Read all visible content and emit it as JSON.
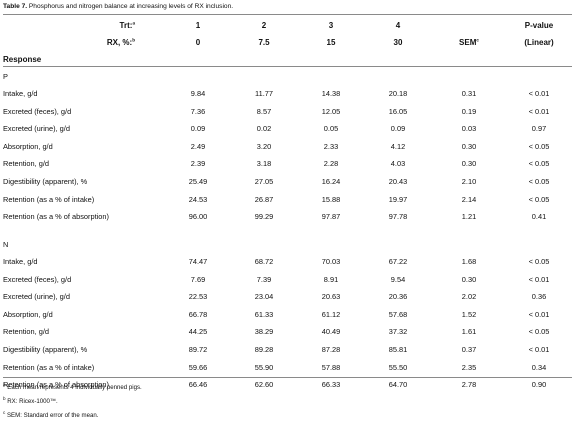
{
  "caption": {
    "label": "Table 7.",
    "text": " Phosphorus and nitrogen balance at increasing levels of RX inclusion."
  },
  "header": {
    "trt_label": "Trt:",
    "trt_mark": "a",
    "rx_label": "RX, %:",
    "rx_mark": "b",
    "trt_values": [
      "1",
      "2",
      "3",
      "4"
    ],
    "rx_values": [
      "0",
      "7.5",
      "15",
      "30"
    ],
    "sem_label": "SEM",
    "sem_mark": "c",
    "pvalue_label": "P-value",
    "pvalue_sub": "(Linear)",
    "response_label": "Response"
  },
  "sections": [
    {
      "name": "P",
      "rows": [
        {
          "label": "Intake, g/d",
          "values": [
            "9.84",
            "11.77",
            "14.38",
            "20.18"
          ],
          "sem": "0.31",
          "p": "< 0.01"
        },
        {
          "label": "Excreted (feces), g/d",
          "values": [
            "7.36",
            "8.57",
            "12.05",
            "16.05"
          ],
          "sem": "0.19",
          "p": "< 0.01"
        },
        {
          "label": "Excreted (urine), g/d",
          "values": [
            "0.09",
            "0.02",
            "0.05",
            "0.09"
          ],
          "sem": "0.03",
          "p": "0.97"
        },
        {
          "label": "Absorption, g/d",
          "values": [
            "2.49",
            "3.20",
            "2.33",
            "4.12"
          ],
          "sem": "0.30",
          "p": "< 0.05"
        },
        {
          "label": "Retention, g/d",
          "values": [
            "2.39",
            "3.18",
            "2.28",
            "4.03"
          ],
          "sem": "0.30",
          "p": "< 0.05"
        },
        {
          "label": "Digestibility (apparent), %",
          "values": [
            "25.49",
            "27.05",
            "16.24",
            "20.43"
          ],
          "sem": "2.10",
          "p": "< 0.05"
        },
        {
          "label": "Retention (as a % of intake)",
          "values": [
            "24.53",
            "26.87",
            "15.88",
            "19.97"
          ],
          "sem": "2.14",
          "p": "< 0.05"
        },
        {
          "label": "Retention (as a % of absorption)",
          "values": [
            "96.00",
            "99.29",
            "97.87",
            "97.78"
          ],
          "sem": "1.21",
          "p": "0.41"
        }
      ]
    },
    {
      "name": "N",
      "rows": [
        {
          "label": "Intake, g/d",
          "values": [
            "74.47",
            "68.72",
            "70.03",
            "67.22"
          ],
          "sem": "1.68",
          "p": "< 0.05"
        },
        {
          "label": "Excreted (feces), g/d",
          "values": [
            "7.69",
            "7.39",
            "8.91",
            "9.54"
          ],
          "sem": "0.30",
          "p": "< 0.01"
        },
        {
          "label": "Excreted (urine), g/d",
          "values": [
            "22.53",
            "23.04",
            "20.63",
            "20.36"
          ],
          "sem": "2.02",
          "p": "0.36"
        },
        {
          "label": "Absorption, g/d",
          "values": [
            "66.78",
            "61.33",
            "61.12",
            "57.68"
          ],
          "sem": "1.52",
          "p": "< 0.01"
        },
        {
          "label": "Retention, g/d",
          "values": [
            "44.25",
            "38.29",
            "40.49",
            "37.32"
          ],
          "sem": "1.61",
          "p": "< 0.05"
        },
        {
          "label": "Digestibility (apparent), %",
          "values": [
            "89.72",
            "89.28",
            "87.28",
            "85.81"
          ],
          "sem": "0.37",
          "p": "< 0.01"
        },
        {
          "label": "Retention (as a % of intake)",
          "values": [
            "59.66",
            "55.90",
            "57.88",
            "55.50"
          ],
          "sem": "2.35",
          "p": "0.34"
        },
        {
          "label": "Retention (as a % of absorption)",
          "values": [
            "66.46",
            "62.60",
            "66.33",
            "64.70"
          ],
          "sem": "2.78",
          "p": "0.90"
        }
      ]
    }
  ],
  "footnotes": [
    {
      "mark": "a",
      "text": " Each mean represents 4 individually penned pigs."
    },
    {
      "mark": "b",
      "text": " RX: Ricex-1000™."
    },
    {
      "mark": "c",
      "text": " SEM: Standard error of the mean."
    }
  ]
}
